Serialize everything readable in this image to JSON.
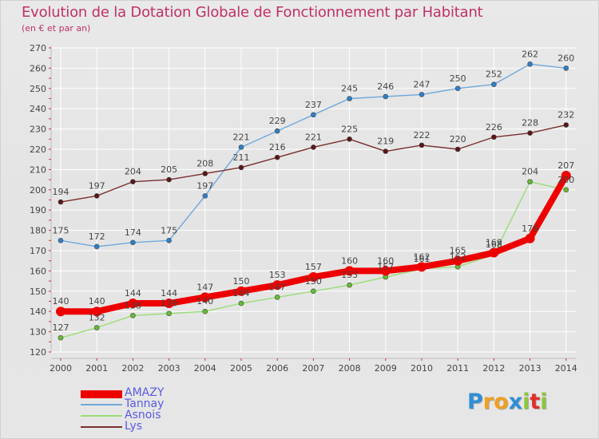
{
  "chart_data": {
    "type": "line",
    "title": "Evolution de la Dotation Globale de Fonctionnement par Habitant",
    "subtitle": "(en € et par an)",
    "categories": [
      "2000",
      "2001",
      "2002",
      "2003",
      "2004",
      "2005",
      "2006",
      "2007",
      "2008",
      "2009",
      "2010",
      "2011",
      "2012",
      "2013",
      "2014"
    ],
    "ylim": [
      120,
      270
    ],
    "yticks": [
      120,
      130,
      140,
      150,
      160,
      170,
      180,
      190,
      200,
      210,
      220,
      230,
      240,
      250,
      260,
      270
    ],
    "grid": true,
    "legend_position": "bottom-left",
    "series": [
      {
        "name": "Tannay",
        "color": "#6fa8dc",
        "marker": "#2f7fc8",
        "values": [
          175,
          172,
          174,
          175,
          197,
          221,
          229,
          237,
          245,
          246,
          247,
          250,
          252,
          262,
          260
        ]
      },
      {
        "name": "Lys",
        "color": "#7a2e2e",
        "marker": "#5a1616",
        "values": [
          194,
          197,
          204,
          205,
          208,
          211,
          216,
          221,
          225,
          219,
          222,
          220,
          226,
          228,
          232
        ]
      },
      {
        "name": "Asnois",
        "color": "#99dd77",
        "marker": "#66bb33",
        "values": [
          127,
          132,
          138,
          139,
          140,
          144,
          147,
          150,
          153,
          157,
          161,
          162,
          168,
          204,
          200
        ]
      },
      {
        "name": "AMAZY",
        "color": "#ee0000",
        "marker": "#ee0000",
        "values": [
          140,
          140,
          144,
          144,
          147,
          150,
          153,
          157,
          160,
          160,
          162,
          165,
          169,
          176,
          207
        ]
      }
    ],
    "labels": [
      {
        "series": "Tannay",
        "text": [
          "175",
          "172",
          "174",
          "175",
          "197",
          "221",
          "229",
          "237",
          "245",
          "246",
          "247",
          "250",
          "252",
          "262",
          "260"
        ]
      },
      {
        "series": "Lys",
        "text": [
          "194",
          "197",
          "204",
          "205",
          "208",
          "211",
          "216",
          "221",
          "225",
          "219",
          "222",
          "220",
          "226",
          "228",
          "232"
        ]
      },
      {
        "series": "Asnois",
        "text": [
          "127",
          "132",
          "138",
          "139",
          "140",
          "144",
          "147",
          "150",
          "153",
          "157",
          "161",
          "162",
          "168",
          "204",
          "200"
        ]
      },
      {
        "series": "AMAZY",
        "text": [
          "140",
          "140",
          "144",
          "144",
          "147",
          "150",
          "153",
          "157",
          "160",
          "160",
          "162",
          "165",
          "169",
          "176",
          "207"
        ]
      }
    ],
    "legend": [
      "AMAZY",
      "Tannay",
      "Asnois",
      "Lys"
    ]
  },
  "brand": {
    "letters": [
      "P",
      "r",
      "o",
      "x",
      "i",
      "t",
      "i"
    ],
    "colors": [
      "#2e8fd6",
      "#f0a020",
      "#f0a020",
      "#2e8fd6",
      "#8cc63e",
      "#e0302a",
      "#8cc63e"
    ]
  }
}
